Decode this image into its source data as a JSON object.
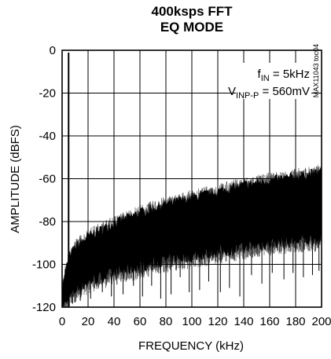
{
  "chart_data": {
    "type": "line",
    "title": "400ksps FFT",
    "subtitle": "EQ MODE",
    "xlabel": "FREQUENCY (kHz)",
    "ylabel": "AMPLITUDE (dBFS)",
    "xlim": [
      0,
      200
    ],
    "ylim": [
      -120,
      0
    ],
    "x_ticks": [
      "0",
      "20",
      "40",
      "60",
      "80",
      "100",
      "120",
      "140",
      "160",
      "180",
      "200"
    ],
    "y_ticks": [
      "0",
      "-20",
      "-40",
      "-60",
      "-80",
      "-100",
      "-120"
    ],
    "grid": true,
    "annotation": {
      "fin_sym": "f",
      "fin_sub": "IN",
      "fin_rest": " = 5kHz",
      "v_sym": "V",
      "v_sub": "INP-P",
      "v_rest": " = 560mV"
    },
    "part_number": "MAX11043 toc04",
    "series": [
      {
        "signal_peak": {
          "x": 5,
          "y": 0
        },
        "noise_floor_top": [
          {
            "x": 0,
            "y": -112
          },
          {
            "x": 5,
            "y": -98
          },
          {
            "x": 10,
            "y": -93
          },
          {
            "x": 20,
            "y": -88
          },
          {
            "x": 40,
            "y": -82
          },
          {
            "x": 60,
            "y": -77
          },
          {
            "x": 80,
            "y": -73
          },
          {
            "x": 100,
            "y": -70
          },
          {
            "x": 120,
            "y": -67
          },
          {
            "x": 140,
            "y": -64
          },
          {
            "x": 160,
            "y": -62
          },
          {
            "x": 180,
            "y": -60
          },
          {
            "x": 200,
            "y": -58
          }
        ],
        "noise_floor_bottom": [
          {
            "x": 0,
            "y": -120
          },
          {
            "x": 10,
            "y": -112
          },
          {
            "x": 20,
            "y": -108
          },
          {
            "x": 40,
            "y": -104
          },
          {
            "x": 60,
            "y": -101
          },
          {
            "x": 80,
            "y": -98
          },
          {
            "x": 100,
            "y": -96
          },
          {
            "x": 120,
            "y": -94
          },
          {
            "x": 140,
            "y": -92
          },
          {
            "x": 160,
            "y": -90
          },
          {
            "x": 180,
            "y": -89
          },
          {
            "x": 200,
            "y": -88
          }
        ],
        "spur_minima": [
          {
            "x": 8,
            "y": -118
          },
          {
            "x": 14,
            "y": -117
          },
          {
            "x": 22,
            "y": -116
          },
          {
            "x": 31,
            "y": -113
          },
          {
            "x": 38,
            "y": -115
          },
          {
            "x": 47,
            "y": -114
          },
          {
            "x": 55,
            "y": -110
          },
          {
            "x": 62,
            "y": -115
          },
          {
            "x": 69,
            "y": -110
          },
          {
            "x": 76,
            "y": -116
          },
          {
            "x": 84,
            "y": -114
          },
          {
            "x": 91,
            "y": -106
          },
          {
            "x": 98,
            "y": -113
          },
          {
            "x": 106,
            "y": -112
          },
          {
            "x": 113,
            "y": -108
          },
          {
            "x": 122,
            "y": -113
          },
          {
            "x": 129,
            "y": -111
          },
          {
            "x": 137,
            "y": -115
          },
          {
            "x": 146,
            "y": -105
          },
          {
            "x": 154,
            "y": -109
          },
          {
            "x": 162,
            "y": -104
          },
          {
            "x": 171,
            "y": -107
          },
          {
            "x": 178,
            "y": -104
          },
          {
            "x": 186,
            "y": -106
          },
          {
            "x": 193,
            "y": -105
          },
          {
            "x": 198,
            "y": -103
          }
        ]
      }
    ]
  }
}
